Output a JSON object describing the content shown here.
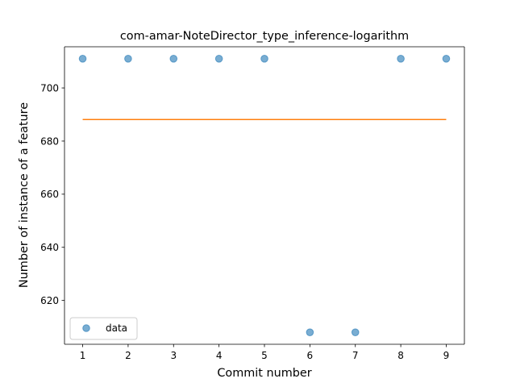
{
  "chart_data": {
    "type": "scatter",
    "title": "com-amar-NoteDirector_type_inference-logarithm",
    "xlabel": "Commit number",
    "ylabel": "Number of instance of a feature",
    "xlim": [
      0.6,
      9.4
    ],
    "ylim": [
      603.5,
      715.5
    ],
    "xticks": [
      1,
      2,
      3,
      4,
      5,
      6,
      7,
      8,
      9
    ],
    "yticks": [
      620,
      640,
      660,
      680,
      700
    ],
    "grid": false,
    "legend_position": "lower-left",
    "series": [
      {
        "name": "data",
        "kind": "scatter",
        "color": "#1f77b4",
        "x": [
          1,
          2,
          3,
          4,
          5,
          6,
          7,
          8,
          9
        ],
        "y": [
          711,
          711,
          711,
          711,
          711,
          608,
          608,
          711,
          711
        ]
      },
      {
        "kind": "line",
        "color": "#ff7f0e",
        "x": [
          1,
          9
        ],
        "y": [
          688.1,
          688.1
        ]
      }
    ]
  }
}
